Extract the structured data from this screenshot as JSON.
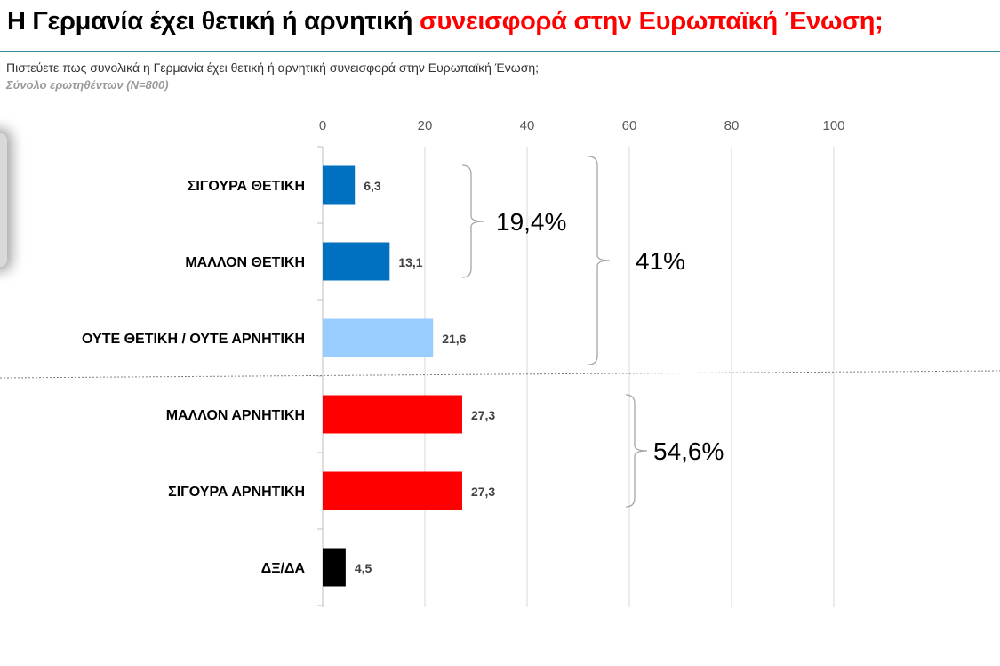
{
  "header": {
    "title_main": "Η Γερμανία έχει θετική ή αρνητική",
    "title_highlight": "συνεισφορά στην Ευρωπαϊκή Ένωση;",
    "question": "Πιστεύετε πως συνολικά η Γερμανία έχει θετική ή αρνητική συνεισφορά στην Ευρωπαϊκή Ένωση;",
    "base": "Σύνολο ερωτηθέντων (N=800)"
  },
  "colors": {
    "title_highlight": "#ff0000",
    "positive": "#0070c0",
    "neutral": "#99ccff",
    "negative": "#ff0000",
    "dk_na": "#000000"
  },
  "chart_data": {
    "type": "bar",
    "orientation": "horizontal",
    "categories": [
      "ΣΙΓΟΥΡΑ ΘΕΤΙΚΗ",
      "ΜΑΛΛΟΝ ΘΕΤΙΚΗ",
      "ΟΥΤΕ ΘΕΤΙΚΗ / ΟΥΤΕ ΑΡΝΗΤΙΚΗ",
      "ΜΑΛΛΟΝ ΑΡΝΗΤΙΚΗ",
      "ΣΙΓΟΥΡΑ ΑΡΝΗΤΙΚΗ",
      "ΔΞ/ΔΑ"
    ],
    "values": [
      6.3,
      13.1,
      21.6,
      27.3,
      27.3,
      4.5
    ],
    "value_labels": [
      "6,3",
      "13,1",
      "21,6",
      "27,3",
      "27,3",
      "4,5"
    ],
    "bar_colors": [
      "#0070c0",
      "#0070c0",
      "#99ccff",
      "#ff0000",
      "#ff0000",
      "#000000"
    ],
    "xlim": [
      0,
      100
    ],
    "xticks": [
      0,
      20,
      40,
      60,
      80,
      100
    ],
    "xtick_labels": [
      "0",
      "20",
      "40",
      "60",
      "80",
      "100"
    ],
    "axis_position": "top",
    "grid": true,
    "annotations": [
      {
        "label": "19,4%",
        "from_category": 0,
        "to_category": 1
      },
      {
        "label": "41%",
        "from_category": 0,
        "to_category": 2
      },
      {
        "label": "54,6%",
        "from_category": 3,
        "to_category": 4
      }
    ],
    "separator_after_category": 2
  }
}
